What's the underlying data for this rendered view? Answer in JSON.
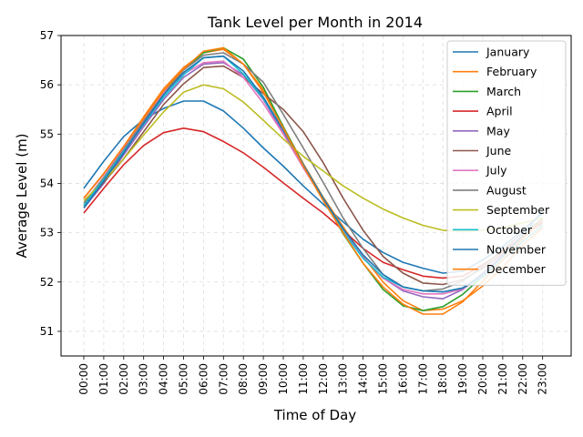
{
  "chart_data": {
    "type": "line",
    "title": "Tank Level per Month in 2014",
    "xlabel": "Time of Day",
    "ylabel": "Average Level (m)",
    "ylim": [
      50.5,
      57
    ],
    "yticks": [
      51,
      52,
      53,
      54,
      55,
      56,
      57
    ],
    "grid": true,
    "legend_position": "top-right",
    "categories": [
      "00:00",
      "01:00",
      "02:00",
      "03:00",
      "04:00",
      "05:00",
      "06:00",
      "07:00",
      "08:00",
      "09:00",
      "10:00",
      "11:00",
      "12:00",
      "13:00",
      "14:00",
      "15:00",
      "16:00",
      "17:00",
      "18:00",
      "19:00",
      "20:00",
      "21:00",
      "22:00",
      "23:00"
    ],
    "series": [
      {
        "name": "January",
        "color": "#1f77b4",
        "values": [
          53.9,
          54.45,
          54.95,
          55.3,
          55.52,
          55.67,
          55.67,
          55.47,
          55.12,
          54.72,
          54.35,
          53.95,
          53.58,
          53.22,
          52.87,
          52.6,
          52.4,
          52.28,
          52.18,
          52.22,
          52.45,
          52.72,
          53.05,
          53.4
        ]
      },
      {
        "name": "February",
        "color": "#ff7f0e",
        "values": [
          53.7,
          54.2,
          54.75,
          55.35,
          55.92,
          56.35,
          56.65,
          56.72,
          56.42,
          55.9,
          55.15,
          54.4,
          53.72,
          53.12,
          52.52,
          52.0,
          51.62,
          51.42,
          51.45,
          51.62,
          51.92,
          52.3,
          52.75,
          53.1
        ]
      },
      {
        "name": "March",
        "color": "#2ca02c",
        "values": [
          53.55,
          54.1,
          54.68,
          55.28,
          55.85,
          56.3,
          56.65,
          56.75,
          56.52,
          55.95,
          55.15,
          54.38,
          53.7,
          52.98,
          52.38,
          51.85,
          51.52,
          51.42,
          51.5,
          51.75,
          52.12,
          52.52,
          52.92,
          53.3
        ]
      },
      {
        "name": "April",
        "color": "#d62728",
        "values": [
          53.4,
          53.9,
          54.38,
          54.77,
          55.03,
          55.12,
          55.05,
          54.85,
          54.62,
          54.33,
          54.01,
          53.7,
          53.4,
          53.05,
          52.68,
          52.4,
          52.25,
          52.12,
          52.08,
          52.12,
          52.35,
          52.62,
          52.92,
          53.25
        ]
      },
      {
        "name": "May",
        "color": "#9467bd",
        "values": [
          53.5,
          54.0,
          54.58,
          55.15,
          55.7,
          56.15,
          56.42,
          56.45,
          56.2,
          55.7,
          55.02,
          54.32,
          53.68,
          53.02,
          52.5,
          52.08,
          51.82,
          51.7,
          51.66,
          51.85,
          52.18,
          52.55,
          52.92,
          53.22
        ]
      },
      {
        "name": "June",
        "color": "#8c564b",
        "values": [
          53.55,
          54.02,
          54.5,
          55.05,
          55.6,
          56.02,
          56.35,
          56.38,
          56.15,
          55.82,
          55.5,
          55.05,
          54.42,
          53.7,
          53.05,
          52.52,
          52.18,
          51.98,
          51.95,
          52.05,
          52.28,
          52.58,
          52.92,
          53.2
        ]
      },
      {
        "name": "July",
        "color": "#e377c2",
        "values": [
          53.7,
          54.18,
          54.72,
          55.3,
          55.85,
          56.22,
          56.45,
          56.48,
          56.15,
          55.62,
          55.0,
          54.32,
          53.68,
          53.05,
          52.5,
          52.08,
          51.85,
          51.76,
          51.76,
          51.86,
          52.12,
          52.45,
          52.82,
          53.15
        ]
      },
      {
        "name": "August",
        "color": "#7f7f7f",
        "values": [
          53.6,
          54.12,
          54.68,
          55.26,
          55.8,
          56.3,
          56.6,
          56.65,
          56.42,
          56.05,
          55.4,
          54.72,
          54.02,
          53.3,
          52.68,
          52.15,
          51.9,
          51.82,
          51.86,
          52.02,
          52.32,
          52.65,
          53.0,
          53.28
        ]
      },
      {
        "name": "September",
        "color": "#bcbd22",
        "values": [
          53.65,
          54.05,
          54.5,
          54.98,
          55.45,
          55.85,
          56.0,
          55.92,
          55.65,
          55.28,
          54.9,
          54.55,
          54.25,
          53.95,
          53.7,
          53.48,
          53.3,
          53.15,
          53.05,
          53.02,
          53.05,
          53.1,
          53.2,
          53.3
        ]
      },
      {
        "name": "October",
        "color": "#17becf",
        "values": [
          53.55,
          54.08,
          54.65,
          55.2,
          55.75,
          56.2,
          56.55,
          56.58,
          56.22,
          55.72,
          55.08,
          54.38,
          53.7,
          53.02,
          52.48,
          52.1,
          51.9,
          51.82,
          51.8,
          51.88,
          52.1,
          52.45,
          52.82,
          53.15
        ]
      },
      {
        "name": "November",
        "color": "#1f77b4",
        "values": [
          53.5,
          54.05,
          54.62,
          55.22,
          55.8,
          56.25,
          56.55,
          56.58,
          56.28,
          55.75,
          55.08,
          54.38,
          53.7,
          53.08,
          52.55,
          52.15,
          51.9,
          51.82,
          51.8,
          51.88,
          52.15,
          52.52,
          52.95,
          53.45
        ]
      },
      {
        "name": "December",
        "color": "#ff7f0e",
        "values": [
          53.7,
          54.2,
          54.75,
          55.32,
          55.88,
          56.32,
          56.68,
          56.75,
          56.42,
          55.85,
          55.12,
          54.35,
          53.65,
          53.0,
          52.38,
          51.9,
          51.55,
          51.35,
          51.35,
          51.6,
          52.02,
          52.45,
          52.88,
          53.25
        ]
      }
    ]
  }
}
